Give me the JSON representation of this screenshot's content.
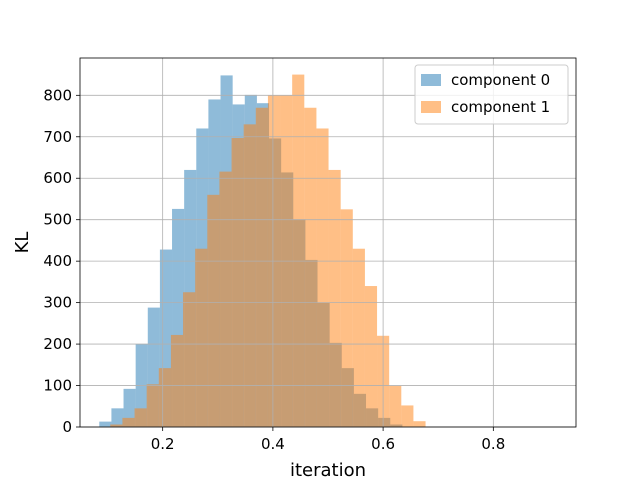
{
  "chart_data": {
    "type": "histogram",
    "xlabel": "iteration",
    "ylabel": "KL",
    "xlim": [
      0.05,
      0.95
    ],
    "ylim": [
      0,
      890
    ],
    "xticks": [
      0.2,
      0.4,
      0.6,
      0.8
    ],
    "xtick_labels": [
      "0.2",
      "0.4",
      "0.6",
      "0.8"
    ],
    "yticks": [
      0,
      100,
      200,
      300,
      400,
      500,
      600,
      700,
      800
    ],
    "ytick_labels": [
      "0",
      "100",
      "200",
      "300",
      "400",
      "500",
      "600",
      "700",
      "800"
    ],
    "grid": true,
    "legend_position": "upper right",
    "series": [
      {
        "name": "component 0",
        "color": "#1f77b4",
        "opacity": 0.5,
        "bins": [
          [
            0.085,
            0.107,
            13
          ],
          [
            0.107,
            0.129,
            45
          ],
          [
            0.129,
            0.151,
            92
          ],
          [
            0.151,
            0.173,
            200
          ],
          [
            0.173,
            0.195,
            288
          ],
          [
            0.195,
            0.217,
            428
          ],
          [
            0.217,
            0.239,
            526
          ],
          [
            0.239,
            0.261,
            620
          ],
          [
            0.261,
            0.283,
            720
          ],
          [
            0.283,
            0.305,
            790
          ],
          [
            0.305,
            0.327,
            848
          ],
          [
            0.327,
            0.349,
            778
          ],
          [
            0.349,
            0.371,
            801
          ],
          [
            0.371,
            0.393,
            781
          ],
          [
            0.393,
            0.415,
            696
          ],
          [
            0.415,
            0.437,
            614
          ],
          [
            0.437,
            0.459,
            501
          ],
          [
            0.459,
            0.481,
            403
          ],
          [
            0.481,
            0.503,
            300
          ],
          [
            0.503,
            0.525,
            203
          ],
          [
            0.525,
            0.547,
            142
          ],
          [
            0.547,
            0.569,
            80
          ],
          [
            0.569,
            0.591,
            45
          ],
          [
            0.591,
            0.613,
            22
          ],
          [
            0.613,
            0.635,
            6
          ]
        ]
      },
      {
        "name": "component 1",
        "color": "#ff7f0e",
        "opacity": 0.5,
        "bins": [
          [
            0.105,
            0.127,
            6
          ],
          [
            0.127,
            0.149,
            22
          ],
          [
            0.149,
            0.171,
            45
          ],
          [
            0.171,
            0.193,
            103
          ],
          [
            0.193,
            0.215,
            142
          ],
          [
            0.215,
            0.237,
            222
          ],
          [
            0.237,
            0.259,
            325
          ],
          [
            0.259,
            0.281,
            430
          ],
          [
            0.281,
            0.303,
            560
          ],
          [
            0.303,
            0.325,
            616
          ],
          [
            0.325,
            0.347,
            697
          ],
          [
            0.347,
            0.369,
            730
          ],
          [
            0.369,
            0.391,
            770
          ],
          [
            0.391,
            0.413,
            800
          ],
          [
            0.413,
            0.435,
            800
          ],
          [
            0.435,
            0.457,
            850
          ],
          [
            0.457,
            0.479,
            770
          ],
          [
            0.479,
            0.501,
            720
          ],
          [
            0.501,
            0.523,
            620
          ],
          [
            0.523,
            0.545,
            525
          ],
          [
            0.545,
            0.567,
            430
          ],
          [
            0.567,
            0.589,
            340
          ],
          [
            0.589,
            0.611,
            220
          ],
          [
            0.611,
            0.633,
            100
          ],
          [
            0.633,
            0.655,
            52
          ],
          [
            0.655,
            0.677,
            14
          ]
        ]
      }
    ]
  }
}
